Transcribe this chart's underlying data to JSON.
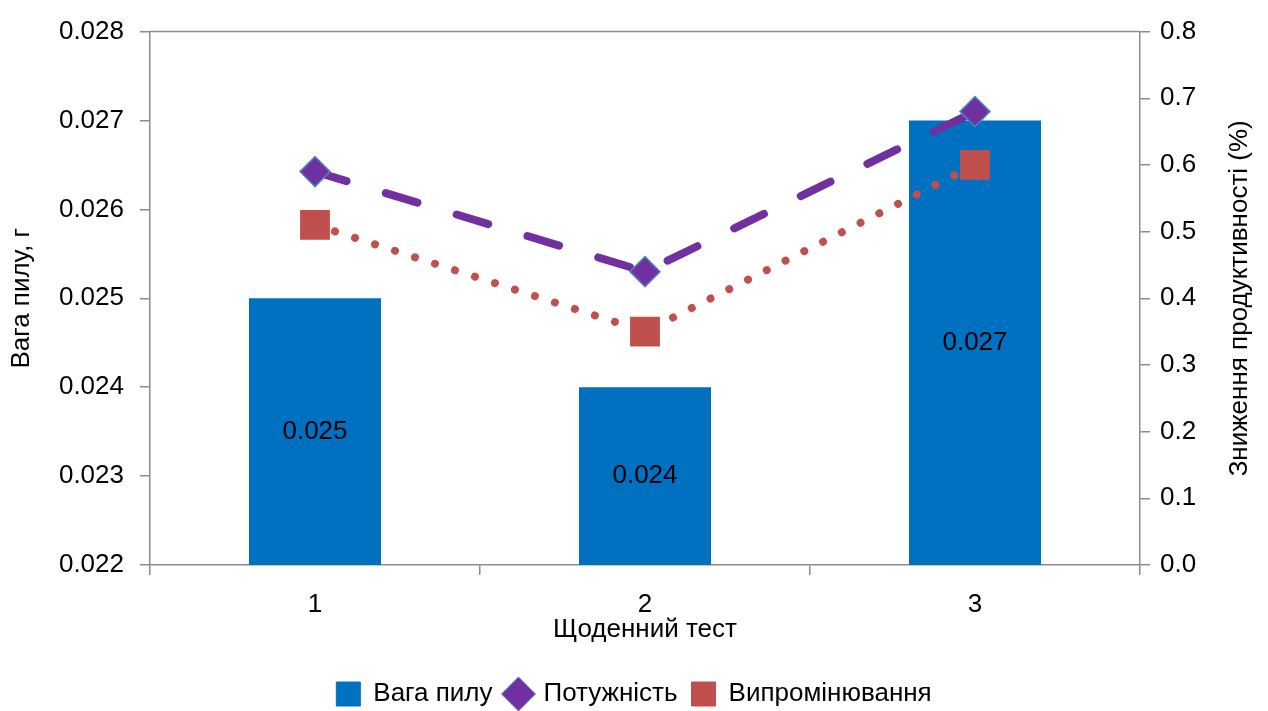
{
  "chart_data": {
    "type": "bar",
    "xlabel": "Щоденний тест",
    "ylabel": "Вага пилу, г",
    "y2label": "Зниження продуктивності (%)",
    "categories": [
      "1",
      "2",
      "3"
    ],
    "series": [
      {
        "name": "Вага пилу",
        "color": "#0070c0",
        "values": [
          0.025,
          0.024,
          0.027
        ],
        "value_labels": [
          "0.025",
          "0.024",
          "0.027"
        ]
      },
      {
        "name": "Потужність",
        "type": "line",
        "axis": "y2",
        "color": "#7030a0",
        "values": [
          0.59,
          0.44,
          0.68
        ],
        "marker": "diamond",
        "line_style": "dashed"
      },
      {
        "name": "Випромінювання",
        "type": "line",
        "axis": "y2",
        "color": "#c0504d",
        "values": [
          0.51,
          0.35,
          0.6
        ],
        "marker": "square",
        "line_style": "dotted"
      }
    ],
    "ylim": [
      0.022,
      0.028
    ],
    "yticks": [
      0.022,
      0.023,
      0.024,
      0.025,
      0.026,
      0.027,
      0.028
    ],
    "y2lim": [
      0,
      0.8
    ],
    "y2ticks": [
      {
        "value": 0,
        "label": "0.0"
      },
      0.1,
      0.2,
      0.3,
      0.4,
      0.5,
      0.6,
      0.7,
      0.8
    ],
    "legend": "bottom"
  }
}
